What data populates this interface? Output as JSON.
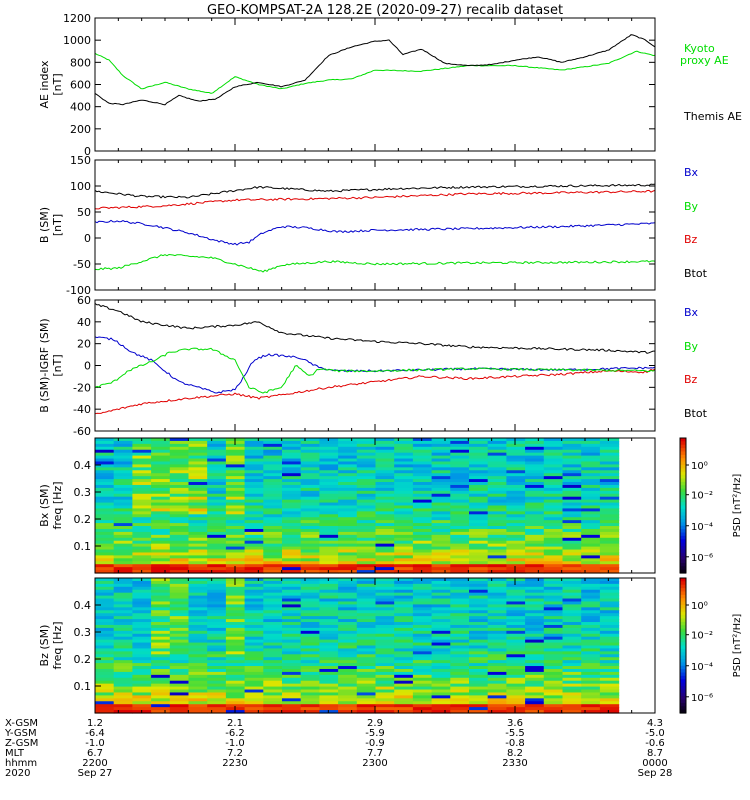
{
  "title": "GEO-KOMPSAT-2A 128.2E (2020-09-27) recalib dataset",
  "colors": {
    "black": "#000000",
    "red": "#e00000",
    "green": "#00dd00",
    "blue": "#0000cc"
  },
  "chart_data": [
    {
      "type": "line",
      "ylabel_lines": [
        "AE index",
        "[nT]"
      ],
      "ylim": [
        0,
        1200
      ],
      "yticks": [
        0,
        200,
        400,
        600,
        800,
        1000,
        1200
      ],
      "legend": [
        {
          "label": "Kyoto",
          "color": "#00dd00"
        },
        {
          "label": "proxy AE",
          "color": "#00dd00"
        },
        {
          "label": "Themis AE",
          "color": "#000000"
        }
      ],
      "series": [
        {
          "color": "#00dd00",
          "x": [
            0,
            3,
            6,
            10,
            15,
            20,
            25,
            30,
            35,
            40,
            45,
            50,
            55,
            60,
            70,
            80,
            90,
            100,
            110,
            116,
            120
          ],
          "y": [
            880,
            820,
            680,
            560,
            620,
            560,
            520,
            670,
            600,
            560,
            610,
            640,
            650,
            730,
            720,
            770,
            770,
            730,
            790,
            900,
            860
          ]
        },
        {
          "color": "#000000",
          "x": [
            0,
            3,
            6,
            10,
            15,
            18,
            22,
            26,
            30,
            35,
            40,
            45,
            50,
            55,
            60,
            63,
            66,
            70,
            75,
            80,
            85,
            90,
            95,
            100,
            105,
            110,
            115,
            118,
            120
          ],
          "y": [
            520,
            430,
            420,
            460,
            420,
            500,
            450,
            470,
            580,
            620,
            580,
            640,
            860,
            940,
            990,
            1000,
            870,
            920,
            790,
            770,
            780,
            820,
            850,
            800,
            850,
            910,
            1050,
            1000,
            940
          ]
        }
      ]
    },
    {
      "type": "line",
      "ylabel_lines": [
        "B (SM)",
        "[nT]"
      ],
      "ylim": [
        -100,
        150
      ],
      "yticks": [
        -100,
        -50,
        0,
        50,
        100,
        150
      ],
      "legend": [
        {
          "label": "Bx",
          "color": "#0000cc"
        },
        {
          "label": "By",
          "color": "#00dd00"
        },
        {
          "label": "Bz",
          "color": "#e00000"
        },
        {
          "label": "Btot",
          "color": "#000000"
        }
      ],
      "series": [
        {
          "color": "#000000",
          "x": [
            0,
            10,
            20,
            35,
            50,
            65,
            80,
            100,
            120
          ],
          "y": [
            90,
            80,
            78,
            98,
            90,
            95,
            98,
            100,
            102
          ]
        },
        {
          "color": "#e00000",
          "x": [
            0,
            15,
            30,
            45,
            60,
            80,
            100,
            120
          ],
          "y": [
            57,
            62,
            73,
            75,
            78,
            85,
            87,
            90
          ]
        },
        {
          "color": "#0000cc",
          "x": [
            0,
            5,
            12,
            20,
            26,
            30,
            33,
            36,
            40,
            45,
            52,
            60,
            80,
            100,
            120
          ],
          "y": [
            30,
            33,
            25,
            10,
            -5,
            -12,
            -8,
            10,
            22,
            20,
            12,
            15,
            18,
            22,
            28
          ]
        },
        {
          "color": "#00dd00",
          "x": [
            0,
            5,
            10,
            15,
            25,
            32,
            36,
            40,
            50,
            60,
            80,
            100,
            120
          ],
          "y": [
            -60,
            -58,
            -45,
            -32,
            -38,
            -55,
            -65,
            -52,
            -45,
            -50,
            -48,
            -47,
            -45
          ]
        }
      ]
    },
    {
      "type": "line",
      "ylabel_lines": [
        "B (SM)-IGRF (SM)",
        "[nT]"
      ],
      "ylim": [
        -60,
        60
      ],
      "yticks": [
        -60,
        -40,
        -20,
        0,
        20,
        40,
        60
      ],
      "legend": [
        {
          "label": "Bx",
          "color": "#0000cc"
        },
        {
          "label": "By",
          "color": "#00dd00"
        },
        {
          "label": "Bz",
          "color": "#e00000"
        },
        {
          "label": "Btot",
          "color": "#000000"
        }
      ],
      "series": [
        {
          "color": "#000000",
          "x": [
            0,
            5,
            10,
            20,
            30,
            35,
            40,
            50,
            60,
            70,
            80,
            90,
            100,
            110,
            118,
            120
          ],
          "y": [
            56,
            50,
            40,
            34,
            37,
            40,
            30,
            25,
            22,
            20,
            17,
            16,
            15,
            14,
            12,
            13
          ]
        },
        {
          "color": "#e00000",
          "x": [
            0,
            5,
            10,
            20,
            30,
            35,
            40,
            50,
            60,
            70,
            80,
            90,
            100,
            110,
            118,
            120
          ],
          "y": [
            -45,
            -40,
            -35,
            -30,
            -26,
            -30,
            -27,
            -20,
            -15,
            -10,
            -12,
            -10,
            -8,
            -5,
            -6,
            -3
          ]
        },
        {
          "color": "#0000cc",
          "x": [
            0,
            4,
            8,
            12,
            18,
            22,
            26,
            30,
            32,
            34,
            37,
            40,
            44,
            48,
            52,
            60,
            80,
            100,
            120
          ],
          "y": [
            26,
            24,
            12,
            5,
            -15,
            -20,
            -25,
            -22,
            -10,
            5,
            10,
            9,
            7,
            -2,
            -5,
            -5,
            -3,
            -4,
            -2
          ]
        },
        {
          "color": "#00dd00",
          "x": [
            0,
            4,
            7,
            10,
            13,
            16,
            20,
            25,
            30,
            33,
            36,
            40,
            43,
            46,
            48,
            52,
            60,
            80,
            100,
            120
          ],
          "y": [
            -20,
            -15,
            -5,
            0,
            5,
            12,
            15,
            15,
            5,
            -20,
            -25,
            -20,
            0,
            -10,
            -3,
            -5,
            -5,
            -3,
            -4,
            -5
          ]
        }
      ]
    },
    {
      "type": "heatmap",
      "ylabel_lines": [
        "Bx (SM)",
        "freq [Hz]"
      ],
      "yticks": [
        0.1,
        0.2,
        0.3,
        0.4
      ],
      "ylim": [
        0,
        0.5
      ],
      "colorbar_label": "PSD [nT²/Hz]",
      "colorbar_ticks": [
        "10⁰",
        "10⁻²",
        "10⁻⁴",
        "10⁻⁶"
      ],
      "intense_cols": [
        2,
        3,
        4,
        5,
        7
      ]
    },
    {
      "type": "heatmap",
      "ylabel_lines": [
        "Bz (SM)",
        "freq [Hz]"
      ],
      "yticks": [
        0.1,
        0.2,
        0.3,
        0.4
      ],
      "ylim": [
        0,
        0.5
      ],
      "colorbar_label": "PSD [nT²/Hz]",
      "colorbar_ticks": [
        "10⁰",
        "10⁻²",
        "10⁻⁴",
        "10⁻⁶"
      ],
      "intense_cols": [
        3,
        4,
        7
      ]
    }
  ],
  "xaxis": {
    "xlim": [
      0,
      120
    ],
    "tick_minutes": [
      0,
      30,
      60,
      90,
      120
    ],
    "row_labels": [
      "X-GSM",
      "Y-GSM",
      "Z-GSM",
      "MLT",
      "hhmm",
      "2020"
    ],
    "columns": [
      [
        "1.2",
        "-6.4",
        "-1.0",
        "6.7",
        "2200",
        "Sep 27"
      ],
      [
        "2.1",
        "-6.2",
        "-1.0",
        "7.2",
        "2230",
        ""
      ],
      [
        "2.9",
        "-5.9",
        "-0.9",
        "7.7",
        "2300",
        ""
      ],
      [
        "3.6",
        "-5.5",
        "-0.8",
        "8.2",
        "2330",
        ""
      ],
      [
        "4.3",
        "-5.0",
        "-0.6",
        "8.7",
        "0000",
        "Sep 28"
      ]
    ]
  }
}
